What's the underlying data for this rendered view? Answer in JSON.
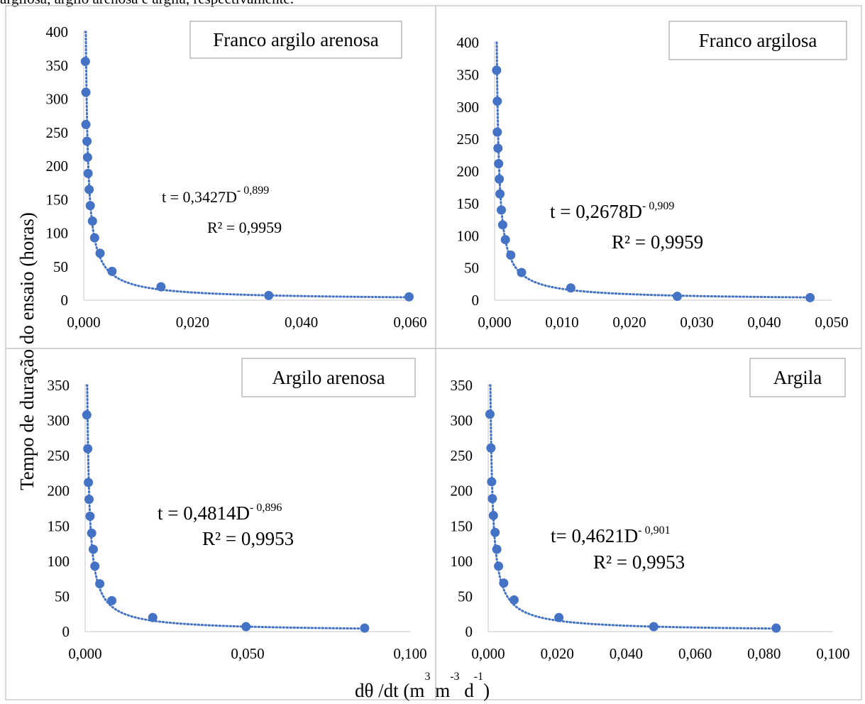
{
  "caption": "argilosa, argilo arenosa e argila, respectivamente.",
  "y_axis_label": "Tempo de duração do ensaio (horas)",
  "x_axis_label": {
    "base": "dθ /dt (m",
    "sup1": "3",
    "mid1": " m",
    "sup2": "-3",
    "mid2": " d",
    "sup3": "-1",
    "end": ")"
  },
  "colors": {
    "marker": "#4472C4",
    "trend": "#4472C4",
    "axis": "#D9D9D9",
    "border": "#BFBFBF"
  },
  "chart_data": [
    {
      "type": "scatter",
      "title": "Franco argilo arenosa",
      "equation": {
        "lhs": "t = 0,3427D",
        "exp": "- 0,899",
        "r2": "R² = 0,9959"
      },
      "coef": 0.3427,
      "power": -0.899,
      "xlim": [
        0,
        0.06
      ],
      "ylim": [
        0,
        400
      ],
      "xticks": [
        "0,000",
        "0,020",
        "0,040",
        "0,060"
      ],
      "xtick_values": [
        0,
        0.02,
        0.04,
        0.06
      ],
      "yticks": [
        "0",
        "50",
        "100",
        "150",
        "200",
        "250",
        "300",
        "350",
        "400"
      ],
      "ytick_values": [
        0,
        50,
        100,
        150,
        200,
        250,
        300,
        350,
        400
      ],
      "x": [
        0.0003,
        0.0004,
        0.0004,
        0.0006,
        0.0007,
        0.0008,
        0.001,
        0.0012,
        0.0016,
        0.002,
        0.003,
        0.0052,
        0.0142,
        0.034,
        0.0598
      ],
      "y": [
        356,
        310,
        262,
        237,
        213,
        189,
        165,
        141,
        118,
        93,
        70,
        43,
        20,
        7,
        5
      ]
    },
    {
      "type": "scatter",
      "title": "Franco argilosa",
      "equation": {
        "lhs": "t = 0,2678D",
        "exp": "- 0,909",
        "r2": "R² = 0,9959"
      },
      "coef": 0.2678,
      "power": -0.909,
      "xlim": [
        0,
        0.05
      ],
      "ylim": [
        0,
        400
      ],
      "xticks": [
        "0,000",
        "0,010",
        "0,020",
        "0,030",
        "0,040",
        "0,050"
      ],
      "xtick_values": [
        0,
        0.01,
        0.02,
        0.03,
        0.04,
        0.05
      ],
      "yticks": [
        "0",
        "50",
        "100",
        "150",
        "200",
        "250",
        "300",
        "350",
        "400"
      ],
      "ytick_values": [
        0,
        50,
        100,
        150,
        200,
        250,
        300,
        350,
        400
      ],
      "x": [
        0.0003,
        0.0004,
        0.0004,
        0.0005,
        0.0006,
        0.0007,
        0.0008,
        0.001,
        0.0012,
        0.0016,
        0.0024,
        0.004,
        0.0113,
        0.0271,
        0.0468
      ],
      "y": [
        357,
        309,
        261,
        236,
        212,
        188,
        165,
        140,
        117,
        94,
        70,
        43,
        19,
        6,
        4
      ]
    },
    {
      "type": "scatter",
      "title": "Argilo arenosa",
      "equation": {
        "lhs": "t = 0,4814D",
        "exp": "- 0,896",
        "r2": "R² = 0,9953"
      },
      "coef": 0.4814,
      "power": -0.896,
      "xlim": [
        0,
        0.1
      ],
      "ylim": [
        0,
        350
      ],
      "xticks": [
        "0,000",
        "0,050",
        "0,100"
      ],
      "xtick_values": [
        0,
        0.05,
        0.1
      ],
      "yticks": [
        "0",
        "50",
        "100",
        "150",
        "200",
        "250",
        "300",
        "350"
      ],
      "ytick_values": [
        0,
        50,
        100,
        150,
        200,
        250,
        300,
        350
      ],
      "x": [
        0.0005,
        0.0008,
        0.001,
        0.0012,
        0.0015,
        0.002,
        0.0025,
        0.003,
        0.0045,
        0.0082,
        0.0208,
        0.0495,
        0.086
      ],
      "y": [
        308,
        260,
        212,
        188,
        164,
        140,
        117,
        93,
        68,
        44,
        20,
        7,
        5
      ]
    },
    {
      "type": "scatter",
      "title": "Argila",
      "equation": {
        "lhs": "t= 0,4621D",
        "exp": "- 0,901",
        "r2": "R² = 0,9953"
      },
      "coef": 0.4621,
      "power": -0.901,
      "xlim": [
        0,
        0.1
      ],
      "ylim": [
        0,
        350
      ],
      "xticks": [
        "0,000",
        "0,020",
        "0,040",
        "0,060",
        "0,080",
        "0,100"
      ],
      "xtick_values": [
        0,
        0.02,
        0.04,
        0.06,
        0.08,
        0.1
      ],
      "yticks": [
        "0",
        "50",
        "100",
        "150",
        "200",
        "250",
        "300",
        "350"
      ],
      "ytick_values": [
        0,
        50,
        100,
        150,
        200,
        250,
        300,
        350
      ],
      "x": [
        0.0005,
        0.0008,
        0.001,
        0.0012,
        0.0015,
        0.002,
        0.0025,
        0.003,
        0.0045,
        0.0075,
        0.0205,
        0.048,
        0.0835
      ],
      "y": [
        309,
        261,
        213,
        189,
        165,
        141,
        117,
        93,
        69,
        45,
        20,
        7,
        5
      ]
    }
  ]
}
